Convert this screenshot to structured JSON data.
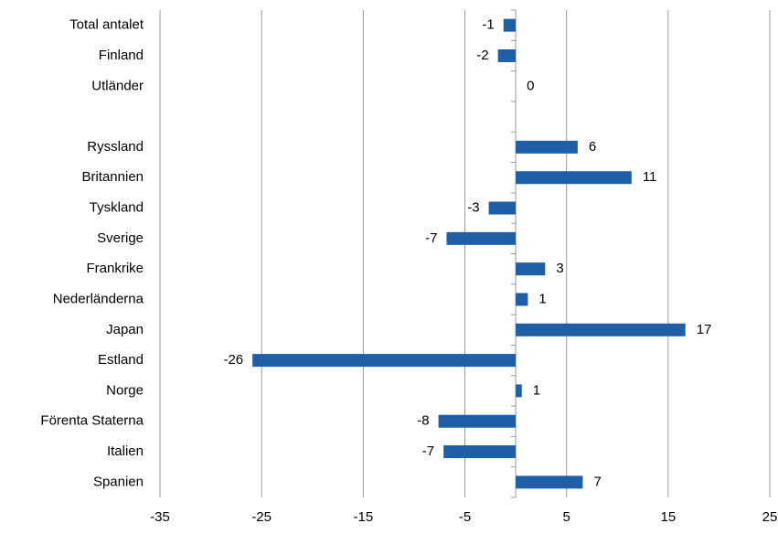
{
  "chart_data": {
    "type": "barh",
    "categories": [
      "Total antalet",
      "Finland",
      "Utländer",
      null,
      "Ryssland",
      "Britannien",
      "Tyskland",
      "Sverige",
      "Frankrike",
      "Nederländerna",
      "Japan",
      "Estland",
      "Norge",
      "Förenta Staterna",
      "Italien",
      "Spanien"
    ],
    "values": [
      -1.2,
      -1.75,
      0,
      null,
      6.1,
      11.4,
      -2.65,
      -6.8,
      2.9,
      1.2,
      16.7,
      -25.9,
      0.6,
      -7.6,
      -7.1,
      6.6
    ],
    "value_labels": [
      "-1",
      "-2",
      "0",
      null,
      "6",
      "11",
      "-3",
      "-7",
      "3",
      "1",
      "17",
      "-26",
      "1",
      "-8",
      "-7",
      "7"
    ],
    "color": "#1f5fa8",
    "xlim": [
      -35,
      25
    ],
    "xticks": [
      -35,
      -25,
      -15,
      -5,
      5,
      15,
      25
    ],
    "grid": true
  }
}
